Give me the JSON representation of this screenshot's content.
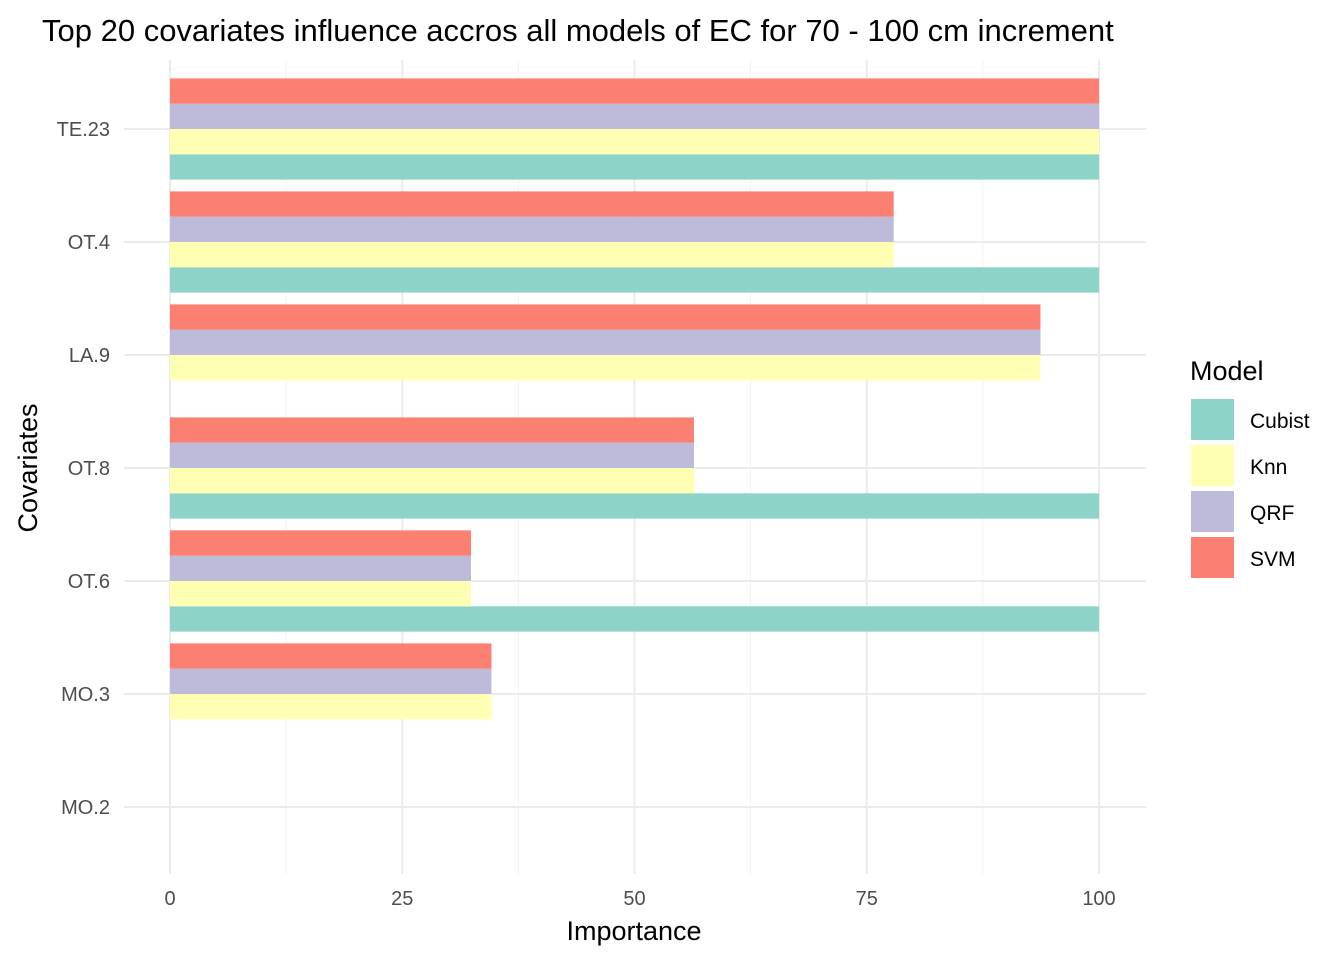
{
  "chart_data": {
    "type": "bar",
    "orientation": "horizontal",
    "title": "Top 20 covariates influence accros all models of EC for 70 - 100 cm increment",
    "xlabel": "Importance",
    "ylabel": "Covariates",
    "xlim": [
      0,
      100
    ],
    "x_ticks": [
      "0",
      "25",
      "50",
      "75",
      "100"
    ],
    "categories": [
      "TE.23",
      "OT.4",
      "LA.9",
      "OT.8",
      "OT.6",
      "MO.3",
      "MO.2"
    ],
    "series": [
      {
        "name": "Cubist",
        "color": "#8dd3c7",
        "values": [
          100,
          100,
          null,
          100,
          100,
          null,
          null
        ]
      },
      {
        "name": "Knn",
        "color": "#ffffb3",
        "values": [
          100,
          77.9,
          93.7,
          56.4,
          32.4,
          34.6,
          null
        ]
      },
      {
        "name": "QRF",
        "color": "#bebada",
        "values": [
          100,
          77.9,
          93.7,
          56.4,
          32.4,
          34.6,
          null
        ]
      },
      {
        "name": "SVM",
        "color": "#fb8072",
        "values": [
          100,
          77.9,
          93.7,
          56.4,
          32.4,
          34.6,
          null
        ]
      }
    ],
    "legend": {
      "title": "Model",
      "position": "right"
    },
    "grid": true
  }
}
